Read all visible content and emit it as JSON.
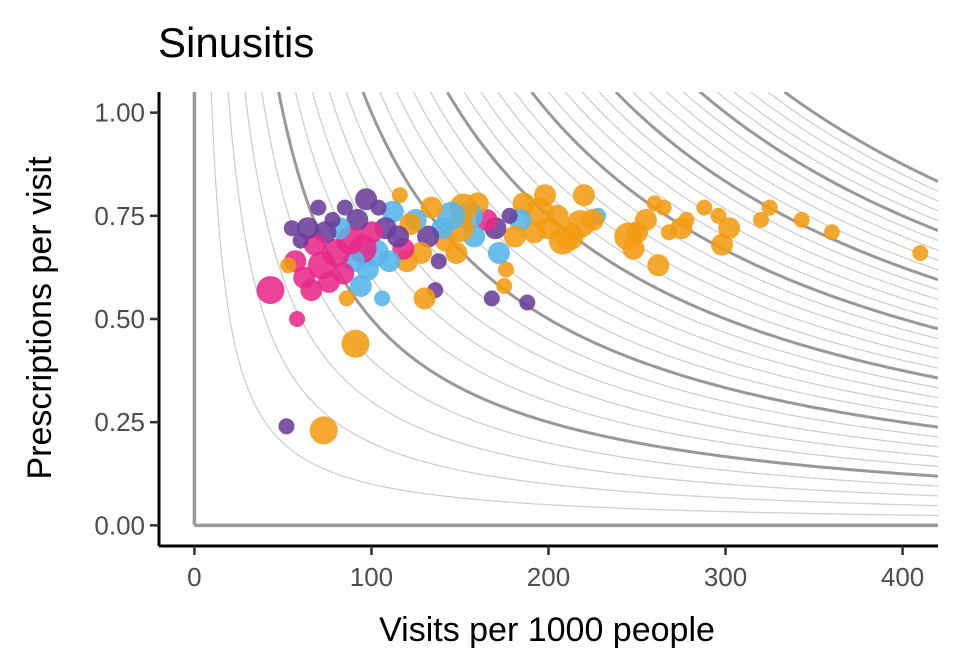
{
  "chart_data": {
    "type": "scatter",
    "title": "Sinusitis",
    "xlabel": "Visits per 1000 people",
    "ylabel": "Prescriptions per visit",
    "xlim": [
      -20,
      420
    ],
    "ylim": [
      -0.05,
      1.05
    ],
    "x_ticks": [
      "0",
      "100",
      "200",
      "300",
      "400"
    ],
    "x_tick_values": [
      0,
      100,
      200,
      300,
      400
    ],
    "y_ticks": [
      "0.00",
      "0.25",
      "0.50",
      "0.75",
      "1.00"
    ],
    "y_tick_values": [
      0,
      0.25,
      0.5,
      0.75,
      1.0
    ],
    "grid": false,
    "legend": "none",
    "reference_lines": {
      "color": "#999999",
      "frame_color": "#999999",
      "minor_color": "#cccccc",
      "isocurves_xy_minor": [
        10,
        20,
        30,
        40,
        50,
        60,
        70,
        80,
        90,
        110,
        120,
        130,
        140,
        160,
        170,
        180,
        190,
        210,
        220,
        230,
        240,
        260,
        270,
        280,
        290,
        310,
        320,
        330,
        340
      ],
      "isocurves_xy_major": [
        50,
        100,
        150,
        200,
        250,
        300,
        350
      ]
    },
    "series_colors": {
      "purple": "#6a3d9a",
      "pink": "#e7298a",
      "blue": "#56b4e9",
      "orange": "#f39c12"
    },
    "points": [
      {
        "x": 410,
        "y": 0.66,
        "s": 1,
        "c": "orange"
      },
      {
        "x": 360,
        "y": 0.71,
        "s": 1,
        "c": "orange"
      },
      {
        "x": 343,
        "y": 0.74,
        "s": 1,
        "c": "orange"
      },
      {
        "x": 325,
        "y": 0.77,
        "s": 1,
        "c": "orange"
      },
      {
        "x": 320,
        "y": 0.74,
        "s": 1,
        "c": "orange"
      },
      {
        "x": 302,
        "y": 0.72,
        "s": 2,
        "c": "orange"
      },
      {
        "x": 296,
        "y": 0.75,
        "s": 1,
        "c": "orange"
      },
      {
        "x": 298,
        "y": 0.68,
        "s": 2,
        "c": "orange"
      },
      {
        "x": 288,
        "y": 0.77,
        "s": 1,
        "c": "orange"
      },
      {
        "x": 278,
        "y": 0.74,
        "s": 1,
        "c": "orange"
      },
      {
        "x": 275,
        "y": 0.72,
        "s": 2,
        "c": "orange"
      },
      {
        "x": 268,
        "y": 0.71,
        "s": 1,
        "c": "orange"
      },
      {
        "x": 265,
        "y": 0.77,
        "s": 1,
        "c": "orange"
      },
      {
        "x": 260,
        "y": 0.78,
        "s": 1,
        "c": "orange"
      },
      {
        "x": 262,
        "y": 0.63,
        "s": 2,
        "c": "orange"
      },
      {
        "x": 255,
        "y": 0.74,
        "s": 2,
        "c": "orange"
      },
      {
        "x": 250,
        "y": 0.71,
        "s": 2,
        "c": "orange"
      },
      {
        "x": 245,
        "y": 0.7,
        "s": 3,
        "c": "orange"
      },
      {
        "x": 248,
        "y": 0.67,
        "s": 2,
        "c": "orange"
      },
      {
        "x": 228,
        "y": 0.75,
        "s": 1,
        "c": "blue"
      },
      {
        "x": 225,
        "y": 0.74,
        "s": 2,
        "c": "orange"
      },
      {
        "x": 220,
        "y": 0.8,
        "s": 2,
        "c": "orange"
      },
      {
        "x": 218,
        "y": 0.73,
        "s": 3,
        "c": "orange"
      },
      {
        "x": 212,
        "y": 0.7,
        "s": 3,
        "c": "orange"
      },
      {
        "x": 208,
        "y": 0.69,
        "s": 3,
        "c": "orange"
      },
      {
        "x": 205,
        "y": 0.75,
        "s": 2,
        "c": "orange"
      },
      {
        "x": 200,
        "y": 0.72,
        "s": 2,
        "c": "orange"
      },
      {
        "x": 198,
        "y": 0.8,
        "s": 2,
        "c": "orange"
      },
      {
        "x": 195,
        "y": 0.76,
        "s": 3,
        "c": "orange"
      },
      {
        "x": 192,
        "y": 0.71,
        "s": 2,
        "c": "orange"
      },
      {
        "x": 188,
        "y": 0.54,
        "s": 1,
        "c": "purple"
      },
      {
        "x": 186,
        "y": 0.78,
        "s": 2,
        "c": "orange"
      },
      {
        "x": 184,
        "y": 0.74,
        "s": 2,
        "c": "blue"
      },
      {
        "x": 181,
        "y": 0.7,
        "s": 2,
        "c": "orange"
      },
      {
        "x": 178,
        "y": 0.75,
        "s": 1,
        "c": "purple"
      },
      {
        "x": 176,
        "y": 0.62,
        "s": 1,
        "c": "orange"
      },
      {
        "x": 175,
        "y": 0.58,
        "s": 1,
        "c": "orange"
      },
      {
        "x": 172,
        "y": 0.66,
        "s": 2,
        "c": "blue"
      },
      {
        "x": 170,
        "y": 0.72,
        "s": 2,
        "c": "purple"
      },
      {
        "x": 168,
        "y": 0.55,
        "s": 1,
        "c": "purple"
      },
      {
        "x": 165,
        "y": 0.74,
        "s": 2,
        "c": "pink"
      },
      {
        "x": 160,
        "y": 0.78,
        "s": 2,
        "c": "orange"
      },
      {
        "x": 158,
        "y": 0.7,
        "s": 2,
        "c": "blue"
      },
      {
        "x": 155,
        "y": 0.75,
        "s": 3,
        "c": "blue"
      },
      {
        "x": 152,
        "y": 0.77,
        "s": 3,
        "c": "orange"
      },
      {
        "x": 150,
        "y": 0.72,
        "s": 3,
        "c": "orange"
      },
      {
        "x": 148,
        "y": 0.66,
        "s": 2,
        "c": "orange"
      },
      {
        "x": 145,
        "y": 0.75,
        "s": 3,
        "c": "blue"
      },
      {
        "x": 142,
        "y": 0.69,
        "s": 2,
        "c": "orange"
      },
      {
        "x": 140,
        "y": 0.72,
        "s": 2,
        "c": "blue"
      },
      {
        "x": 138,
        "y": 0.64,
        "s": 1,
        "c": "purple"
      },
      {
        "x": 136,
        "y": 0.57,
        "s": 1,
        "c": "purple"
      },
      {
        "x": 134,
        "y": 0.77,
        "s": 2,
        "c": "orange"
      },
      {
        "x": 132,
        "y": 0.7,
        "s": 2,
        "c": "purple"
      },
      {
        "x": 130,
        "y": 0.55,
        "s": 2,
        "c": "orange"
      },
      {
        "x": 128,
        "y": 0.66,
        "s": 2,
        "c": "orange"
      },
      {
        "x": 125,
        "y": 0.74,
        "s": 2,
        "c": "blue"
      },
      {
        "x": 122,
        "y": 0.73,
        "s": 2,
        "c": "orange"
      },
      {
        "x": 120,
        "y": 0.64,
        "s": 2,
        "c": "orange"
      },
      {
        "x": 118,
        "y": 0.67,
        "s": 2,
        "c": "pink"
      },
      {
        "x": 116,
        "y": 0.8,
        "s": 1,
        "c": "orange"
      },
      {
        "x": 115,
        "y": 0.7,
        "s": 2,
        "c": "purple"
      },
      {
        "x": 112,
        "y": 0.76,
        "s": 2,
        "c": "blue"
      },
      {
        "x": 110,
        "y": 0.64,
        "s": 2,
        "c": "blue"
      },
      {
        "x": 108,
        "y": 0.72,
        "s": 2,
        "c": "purple"
      },
      {
        "x": 106,
        "y": 0.55,
        "s": 1,
        "c": "blue"
      },
      {
        "x": 104,
        "y": 0.77,
        "s": 1,
        "c": "purple"
      },
      {
        "x": 102,
        "y": 0.66,
        "s": 3,
        "c": "blue"
      },
      {
        "x": 100,
        "y": 0.71,
        "s": 2,
        "c": "pink"
      },
      {
        "x": 98,
        "y": 0.62,
        "s": 2,
        "c": "blue"
      },
      {
        "x": 97,
        "y": 0.79,
        "s": 2,
        "c": "purple"
      },
      {
        "x": 95,
        "y": 0.67,
        "s": 3,
        "c": "pink"
      },
      {
        "x": 94,
        "y": 0.58,
        "s": 2,
        "c": "blue"
      },
      {
        "x": 92,
        "y": 0.74,
        "s": 2,
        "c": "purple"
      },
      {
        "x": 91,
        "y": 0.44,
        "s": 3,
        "c": "orange"
      },
      {
        "x": 90,
        "y": 0.64,
        "s": 2,
        "c": "blue"
      },
      {
        "x": 88,
        "y": 0.69,
        "s": 3,
        "c": "pink"
      },
      {
        "x": 86,
        "y": 0.55,
        "s": 1,
        "c": "orange"
      },
      {
        "x": 85,
        "y": 0.77,
        "s": 1,
        "c": "purple"
      },
      {
        "x": 84,
        "y": 0.61,
        "s": 2,
        "c": "pink"
      },
      {
        "x": 82,
        "y": 0.72,
        "s": 2,
        "c": "blue"
      },
      {
        "x": 80,
        "y": 0.66,
        "s": 3,
        "c": "pink"
      },
      {
        "x": 78,
        "y": 0.74,
        "s": 1,
        "c": "purple"
      },
      {
        "x": 76,
        "y": 0.59,
        "s": 2,
        "c": "pink"
      },
      {
        "x": 74,
        "y": 0.71,
        "s": 2,
        "c": "purple"
      },
      {
        "x": 73,
        "y": 0.23,
        "s": 3,
        "c": "orange"
      },
      {
        "x": 72,
        "y": 0.63,
        "s": 3,
        "c": "pink"
      },
      {
        "x": 70,
        "y": 0.77,
        "s": 1,
        "c": "purple"
      },
      {
        "x": 68,
        "y": 0.68,
        "s": 2,
        "c": "pink"
      },
      {
        "x": 66,
        "y": 0.57,
        "s": 2,
        "c": "pink"
      },
      {
        "x": 64,
        "y": 0.72,
        "s": 2,
        "c": "purple"
      },
      {
        "x": 62,
        "y": 0.6,
        "s": 2,
        "c": "pink"
      },
      {
        "x": 60,
        "y": 0.69,
        "s": 1,
        "c": "purple"
      },
      {
        "x": 58,
        "y": 0.5,
        "s": 1,
        "c": "pink"
      },
      {
        "x": 57,
        "y": 0.64,
        "s": 2,
        "c": "pink"
      },
      {
        "x": 55,
        "y": 0.72,
        "s": 1,
        "c": "purple"
      },
      {
        "x": 53,
        "y": 0.63,
        "s": 1,
        "c": "orange"
      },
      {
        "x": 52,
        "y": 0.24,
        "s": 1,
        "c": "purple"
      },
      {
        "x": 43,
        "y": 0.57,
        "s": 3,
        "c": "pink"
      }
    ]
  }
}
